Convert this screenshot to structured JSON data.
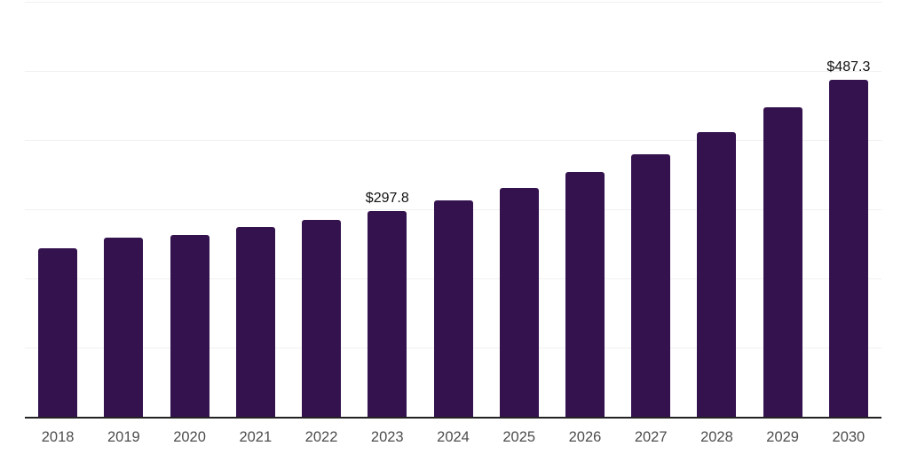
{
  "chart_data": {
    "type": "bar",
    "title": "",
    "xlabel": "",
    "ylabel": "",
    "categories": [
      "2018",
      "2019",
      "2020",
      "2021",
      "2022",
      "2023",
      "2024",
      "2025",
      "2026",
      "2027",
      "2028",
      "2029",
      "2030"
    ],
    "values": [
      244,
      259,
      263,
      275,
      285,
      297.8,
      313,
      331,
      354,
      380,
      411,
      447,
      487.3
    ],
    "data_labels": [
      "",
      "",
      "",
      "",
      "",
      "$297.8",
      "",
      "",
      "",
      "",
      "",
      "",
      "$487.3"
    ],
    "ylim": [
      0,
      600
    ],
    "grid_step": 100,
    "grid": "horizontal",
    "legend_position": "none",
    "bar_color": "#34124e",
    "axis_line_color": "#222222",
    "gridline_color": "#f0f0f0",
    "tick_label_color": "#4d4d4d",
    "data_label_color": "#111111",
    "background_color": "#ffffff"
  }
}
